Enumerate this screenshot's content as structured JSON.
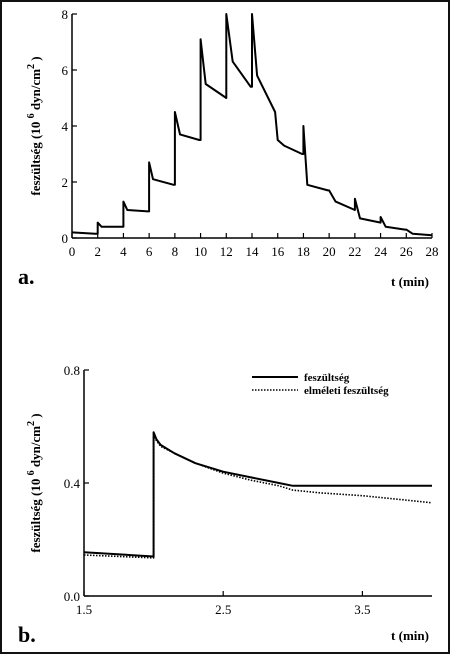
{
  "chart_data": [
    {
      "type": "line",
      "panel_label": "a.",
      "xlabel": "t (min)",
      "ylabel": "feszültség (10 6 dyn/cm 2 )",
      "ylabel_parts": {
        "main": "feszültség (10",
        "exp1": "6",
        "mid": "dyn/cm",
        "exp2": "2",
        "end": ")"
      },
      "xlim": [
        0,
        28
      ],
      "ylim": [
        0,
        8
      ],
      "xticks": [
        "0",
        "2",
        "4",
        "6",
        "8",
        "10",
        "12",
        "14",
        "16",
        "18",
        "20",
        "22",
        "24",
        "26",
        "28"
      ],
      "yticks": [
        "0",
        "2",
        "4",
        "6",
        "8"
      ],
      "series": [
        {
          "x": [
            0,
            1.8,
            2,
            2,
            2.3,
            3.9,
            4,
            4,
            4.3,
            5.9,
            6,
            6,
            6.3,
            7.9,
            8,
            8,
            8.4,
            9.9,
            10,
            10,
            10.4,
            12,
            12,
            12.5,
            13.9,
            14,
            14,
            14.4,
            15.8,
            16,
            16.5,
            17.9,
            18,
            18,
            18.3,
            19.9,
            20,
            20.5,
            22,
            22,
            22.4,
            24,
            24,
            24.4,
            25.9,
            26,
            26.5,
            28
          ],
          "y": [
            0.2,
            0.15,
            0.15,
            0.55,
            0.4,
            0.4,
            0.4,
            1.3,
            1.0,
            0.95,
            0.95,
            2.7,
            2.1,
            1.9,
            1.9,
            4.5,
            3.7,
            3.5,
            3.5,
            7.1,
            5.5,
            5.0,
            8.0,
            6.3,
            5.4,
            5.4,
            8.0,
            5.8,
            4.5,
            3.5,
            3.3,
            3.0,
            3.0,
            4.0,
            1.9,
            1.7,
            1.7,
            1.3,
            1.0,
            1.4,
            0.7,
            0.55,
            0.75,
            0.4,
            0.3,
            0.3,
            0.15,
            0.1
          ]
        }
      ]
    },
    {
      "type": "line",
      "panel_label": "b.",
      "xlabel": "t (min)",
      "ylabel": "feszültség (10 6 dyn/cm 2 )",
      "ylabel_parts": {
        "main": "feszültség (10",
        "exp1": "6",
        "mid": "dyn/cm",
        "exp2": "2",
        "end": ")"
      },
      "xlim": [
        1.5,
        4.0
      ],
      "ylim": [
        0.0,
        0.8
      ],
      "xticks": [
        "1.5",
        "2.5",
        "3.5"
      ],
      "yticks": [
        "0.0",
        "0.4",
        "0.8"
      ],
      "legend": "top-right",
      "series": [
        {
          "name": "feszültség",
          "style": "solid",
          "x": [
            1.5,
            2.0,
            2.0,
            2.02,
            2.05,
            2.15,
            2.3,
            2.5,
            2.7,
            2.9,
            3.0,
            3.2,
            3.5,
            3.8,
            4.0
          ],
          "y": [
            0.155,
            0.14,
            0.58,
            0.555,
            0.535,
            0.505,
            0.47,
            0.44,
            0.42,
            0.4,
            0.39,
            0.39,
            0.39,
            0.39,
            0.39
          ]
        },
        {
          "name": "elméleti feszültség",
          "style": "dotted",
          "x": [
            1.5,
            2.0,
            2.0,
            2.02,
            2.05,
            2.15,
            2.3,
            2.5,
            2.7,
            2.9,
            3.0,
            3.2,
            3.5,
            3.8,
            4.0
          ],
          "y": [
            0.145,
            0.135,
            0.565,
            0.55,
            0.53,
            0.505,
            0.47,
            0.435,
            0.41,
            0.39,
            0.375,
            0.365,
            0.355,
            0.34,
            0.33
          ]
        }
      ]
    }
  ]
}
